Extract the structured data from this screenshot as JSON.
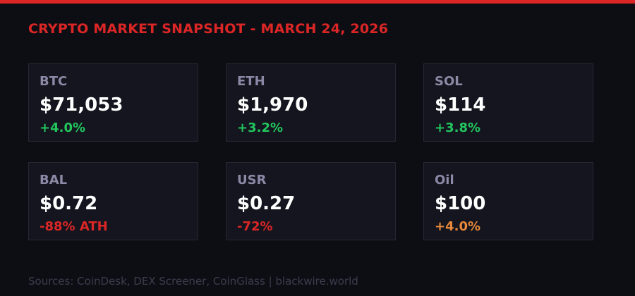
{
  "header": {
    "title": "CRYPTO MARKET SNAPSHOT - MARCH 24, 2026"
  },
  "colors": {
    "accent": "#dc2626",
    "positive": "#22c55e",
    "negative": "#dc2626",
    "warning": "#e8883a"
  },
  "cards": [
    {
      "label": "BTC",
      "value": "$71,053",
      "change": "+4.0%",
      "color": "#22c55e"
    },
    {
      "label": "ETH",
      "value": "$1,970",
      "change": "+3.2%",
      "color": "#22c55e"
    },
    {
      "label": "SOL",
      "value": "$114",
      "change": "+3.8%",
      "color": "#22c55e"
    },
    {
      "label": "BAL",
      "value": "$0.72",
      "change": "-88% ATH",
      "color": "#dc2626"
    },
    {
      "label": "USR",
      "value": "$0.27",
      "change": "-72%",
      "color": "#dc2626"
    },
    {
      "label": "Oil",
      "value": "$100",
      "change": "+4.0%",
      "color": "#e8883a"
    }
  ],
  "footer": {
    "text": "Sources: CoinDesk, DEX Screener, CoinGlass | blackwire.world"
  }
}
